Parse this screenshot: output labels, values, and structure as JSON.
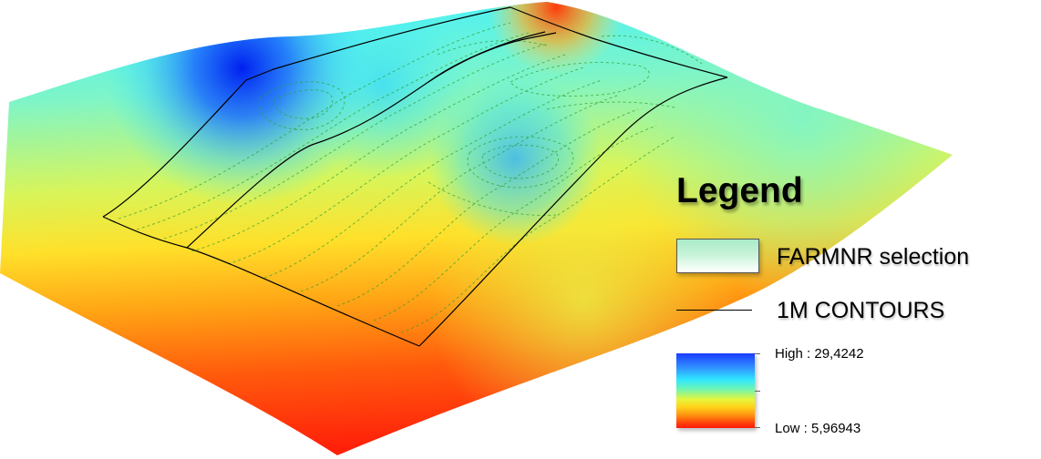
{
  "legend": {
    "title": "Legend",
    "items": [
      {
        "label": "FARMNR selection",
        "symbol": "polygon",
        "fill_color": "#c7f3d8",
        "outline_color": "#555555"
      },
      {
        "label": "1M CONTOURS",
        "symbol": "line",
        "color": "#000000"
      }
    ],
    "elevation": {
      "high_label": "High : 29,4242",
      "low_label": "Low : 5,96943",
      "high_value": 29.4242,
      "low_value": 5.96943,
      "ramp_colors": [
        "#1a3cff",
        "#2f8cff",
        "#2fe6ff",
        "#6ff5b0",
        "#e8f53a",
        "#ffd21a",
        "#ff8a0f",
        "#ff1a0a"
      ]
    }
  },
  "map": {
    "surface": "3D elevation surface",
    "field_boundary_color": "#000000",
    "contour_color": "#2e9e2e"
  }
}
